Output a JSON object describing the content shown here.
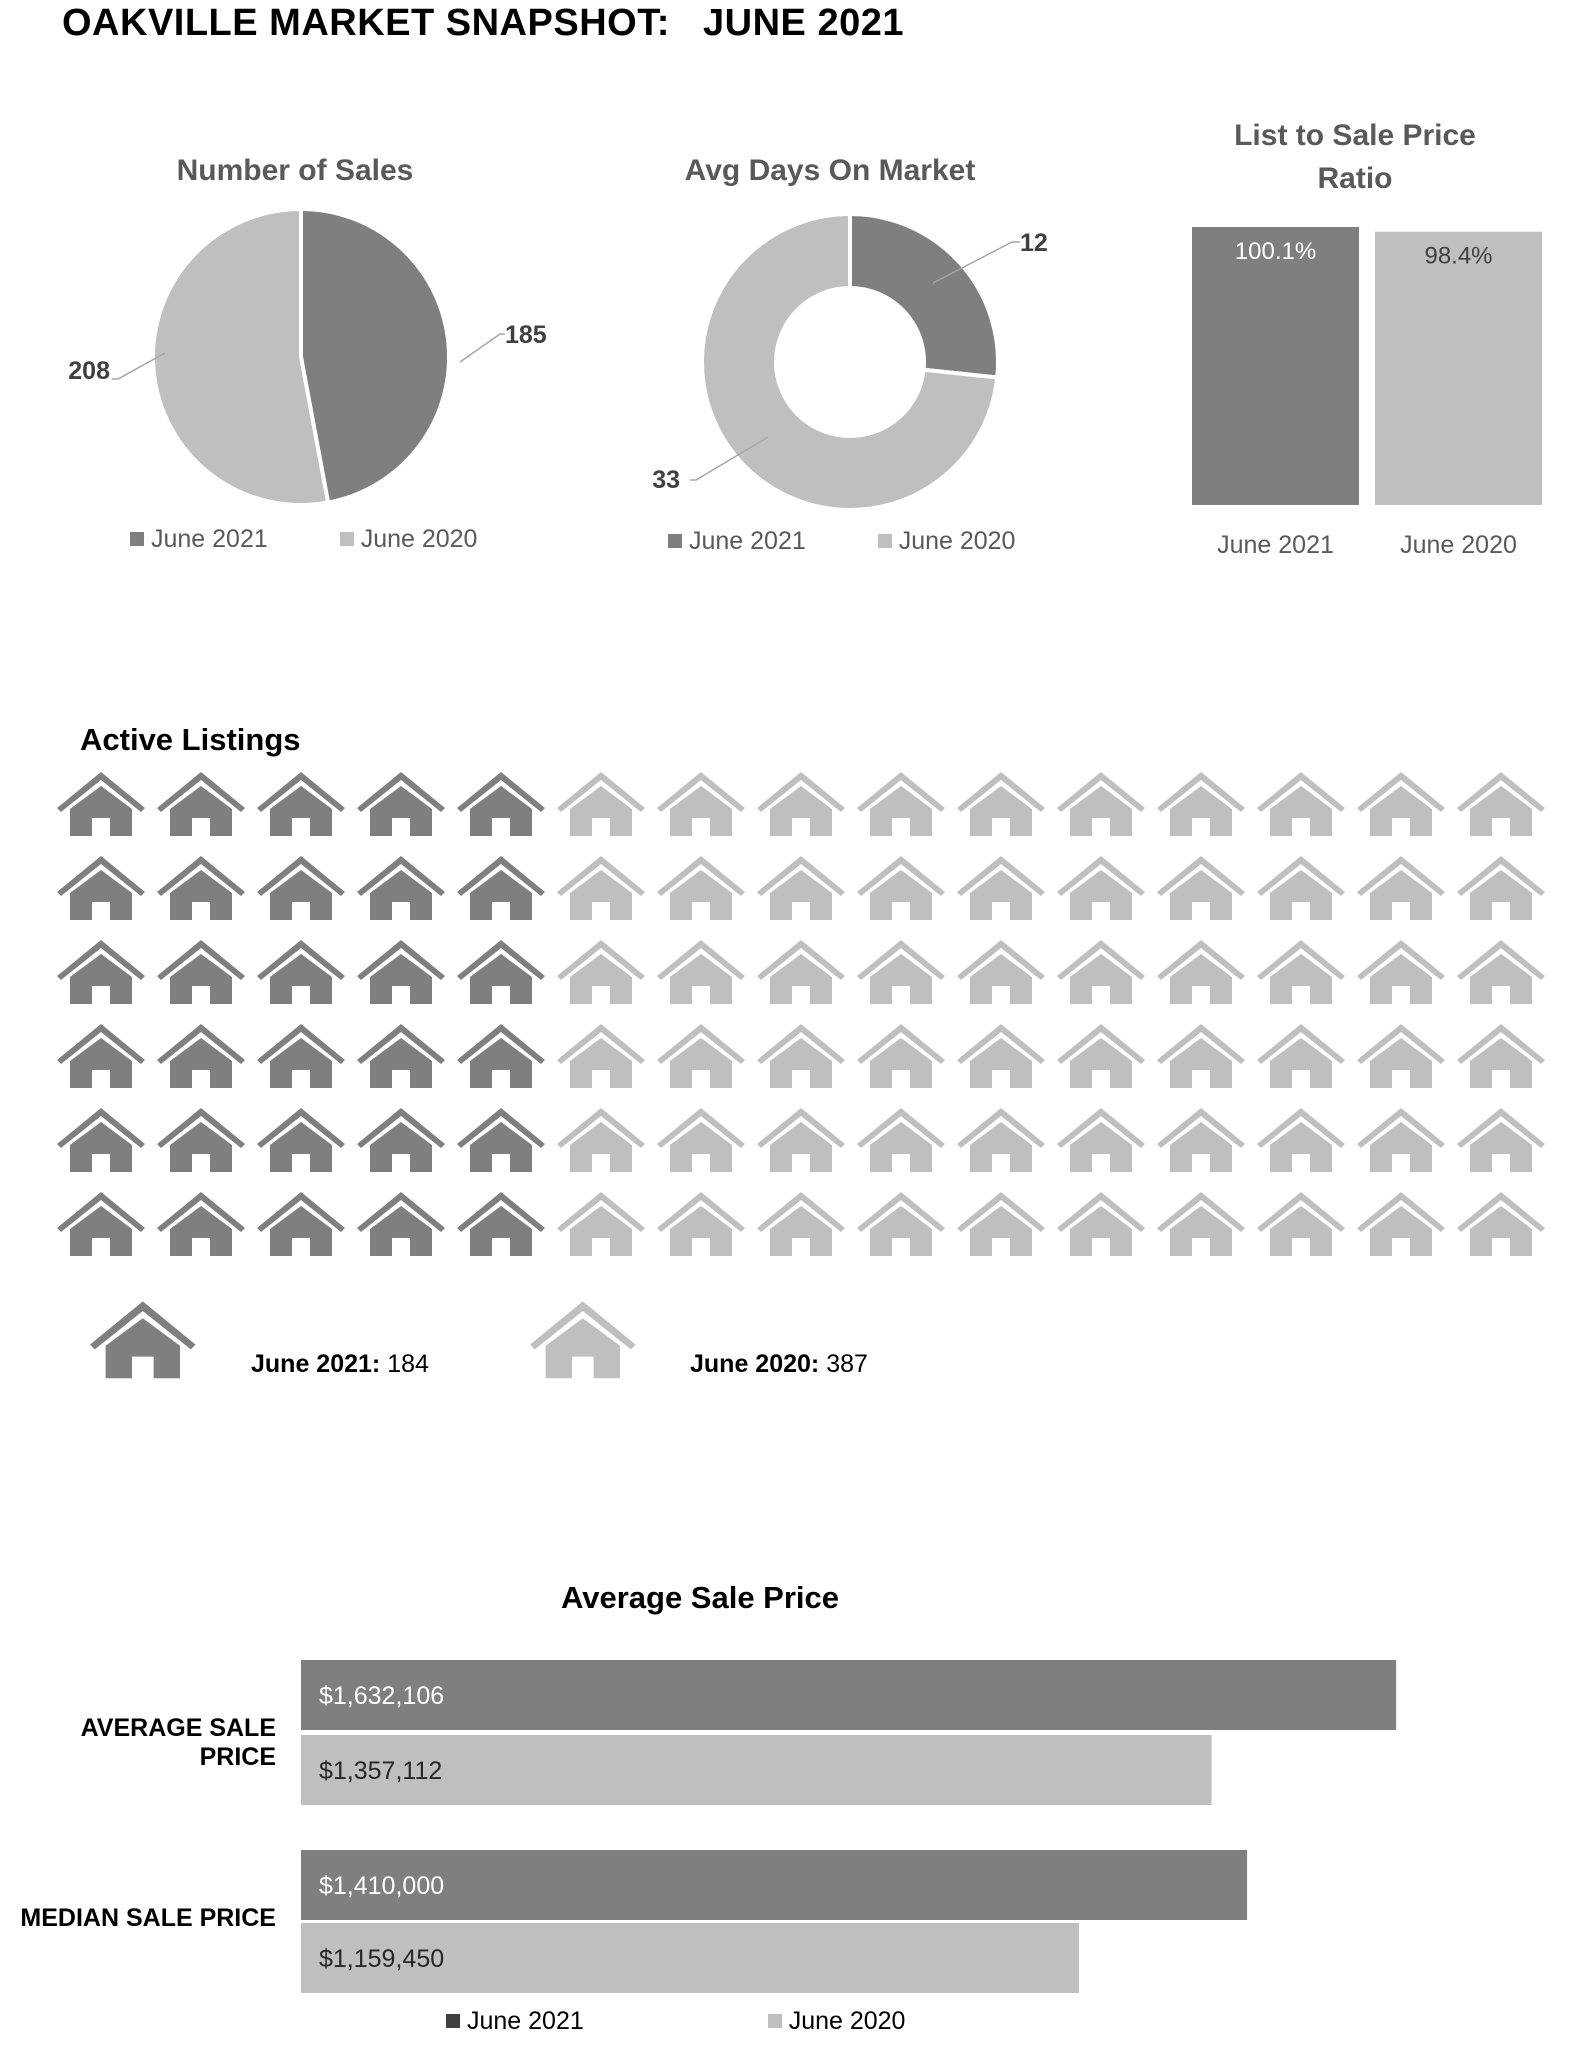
{
  "page_title": "OAKVILLE MARKET SNAPSHOT:   JUNE 2021",
  "colors": {
    "june_2021": "#7f7f7f",
    "june_2020": "#bfbfbf"
  },
  "chart_data": [
    {
      "id": "number-of-sales",
      "type": "pie",
      "title": "Number of Sales",
      "labels": [
        "June 2021",
        "June 2020"
      ],
      "values": [
        185,
        208
      ],
      "data_labels": [
        "185",
        "208"
      ],
      "legend": "bottom"
    },
    {
      "id": "avg-days-on-market",
      "type": "pie",
      "variant": "donut",
      "title": "Avg Days On Market",
      "labels": [
        "June 2021",
        "June 2020"
      ],
      "values": [
        12,
        33
      ],
      "data_labels": [
        "12",
        "33"
      ],
      "legend": "bottom"
    },
    {
      "id": "list-to-sale-ratio",
      "type": "bar",
      "title": "List to Sale Price Ratio",
      "title_lines": [
        "List to Sale Price",
        "Ratio"
      ],
      "categories": [
        "June 2021",
        "June 2020"
      ],
      "values": [
        100.1,
        98.4
      ],
      "data_labels": [
        "100.1%",
        "98.4%"
      ],
      "ylim": [
        0,
        100.1
      ]
    },
    {
      "id": "active-listings",
      "type": "bar",
      "variant": "pictograph",
      "title": "Active Listings",
      "categories": [
        "June 2021",
        "June 2020"
      ],
      "values": [
        184,
        387
      ],
      "grid": {
        "rows": 6,
        "cols": 15,
        "highlight_cols": 5
      },
      "legend_labels": [
        "June 2021:",
        "June 2020:"
      ],
      "legend_values": [
        "184",
        "387"
      ]
    },
    {
      "id": "average-sale-price",
      "type": "bar",
      "orientation": "horizontal",
      "title": "Average Sale Price",
      "categories": [
        "AVERAGE SALE PRICE",
        "MEDIAN SALE PRICE"
      ],
      "series": [
        {
          "name": "June 2021",
          "values": [
            1632106,
            1410000
          ],
          "data_labels": [
            "$1,632,106",
            "$1,410,000"
          ]
        },
        {
          "name": "June 2020",
          "values": [
            1357112,
            1159450
          ],
          "data_labels": [
            "$1,357,112",
            "$1,159,450"
          ]
        }
      ],
      "xlim": [
        0,
        2000000
      ],
      "legend": "bottom"
    }
  ]
}
